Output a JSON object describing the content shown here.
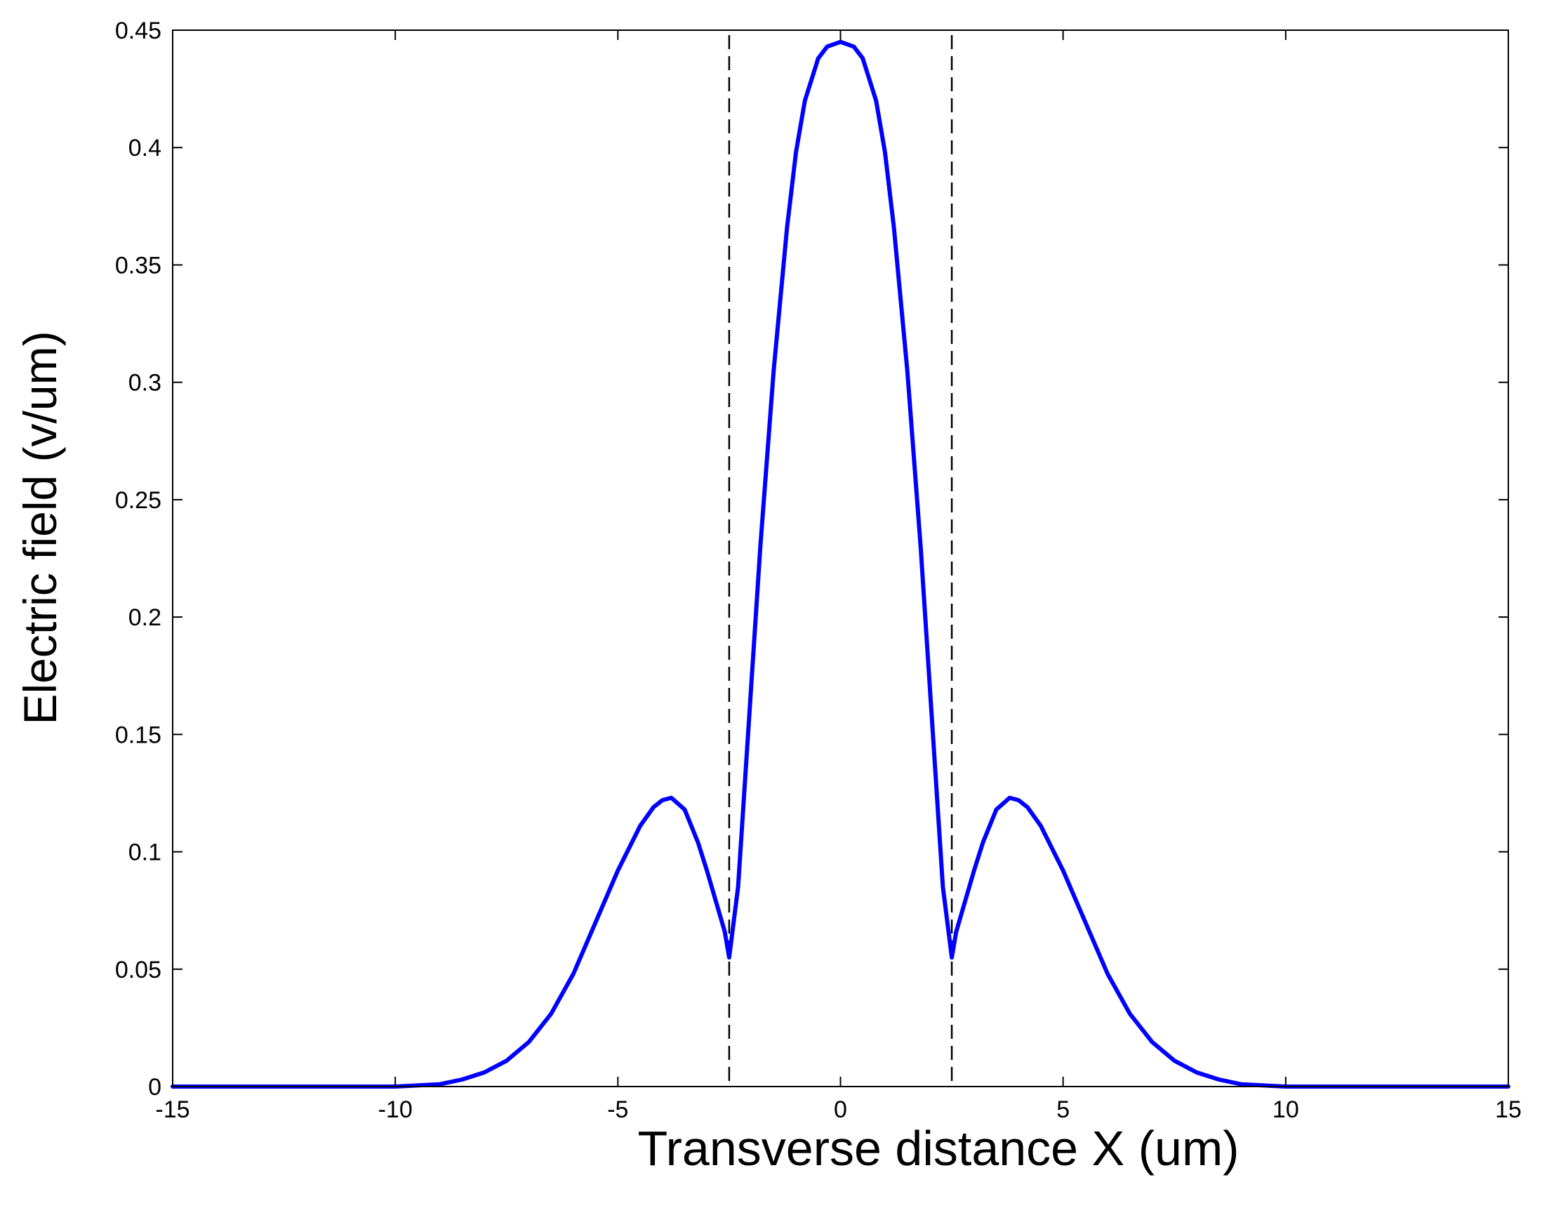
{
  "chart_data": {
    "type": "line",
    "title": "",
    "xlabel": "Transverse distance X (um)",
    "ylabel": "Electric field (v/um)",
    "xlim": [
      -15,
      15
    ],
    "ylim": [
      0,
      0.45
    ],
    "xticks": [
      -15,
      -10,
      -5,
      0,
      5,
      10,
      15
    ],
    "yticks": [
      0,
      0.05,
      0.1,
      0.15,
      0.2,
      0.25,
      0.3,
      0.35,
      0.4,
      0.45
    ],
    "xtick_labels": [
      "-15",
      "-10",
      "-5",
      "0",
      "5",
      "10",
      "15"
    ],
    "ytick_labels": [
      "0",
      "0.05",
      "0.1",
      "0.15",
      "0.2",
      "0.25",
      "0.3",
      "0.35",
      "0.4",
      "0.45"
    ],
    "grid": false,
    "legend": "none",
    "series": [
      {
        "color": "#0000ff",
        "x": [
          -15,
          -12,
          -10,
          -9,
          -8.5,
          -8,
          -7.5,
          -7,
          -6.5,
          -6,
          -5.5,
          -5,
          -4.5,
          -4.2,
          -4,
          -3.8,
          -3.5,
          -3.2,
          -3,
          -2.8,
          -2.6,
          -2.5,
          -2.3,
          -2,
          -1.8,
          -1.5,
          -1.2,
          -1,
          -0.8,
          -0.5,
          -0.3,
          0,
          0.3,
          0.5,
          0.8,
          1,
          1.2,
          1.5,
          1.8,
          2,
          2.3,
          2.5,
          2.6,
          2.8,
          3,
          3.2,
          3.5,
          3.8,
          4,
          4.2,
          4.5,
          5,
          5.5,
          6,
          6.5,
          7,
          7.5,
          8,
          8.5,
          9,
          10,
          12,
          15
        ],
        "y": [
          0,
          0,
          0,
          0.001,
          0.003,
          0.006,
          0.011,
          0.019,
          0.031,
          0.048,
          0.07,
          0.092,
          0.111,
          0.119,
          0.122,
          0.123,
          0.118,
          0.104,
          0.092,
          0.079,
          0.066,
          0.055,
          0.085,
          0.172,
          0.23,
          0.305,
          0.366,
          0.398,
          0.42,
          0.438,
          0.443,
          0.445,
          0.443,
          0.438,
          0.42,
          0.398,
          0.366,
          0.305,
          0.23,
          0.172,
          0.085,
          0.055,
          0.066,
          0.079,
          0.092,
          0.104,
          0.118,
          0.123,
          0.122,
          0.119,
          0.111,
          0.092,
          0.07,
          0.048,
          0.031,
          0.019,
          0.011,
          0.006,
          0.003,
          0.001,
          0,
          0,
          0
        ]
      }
    ],
    "reference_lines": [
      {
        "orientation": "vertical",
        "x": -2.5,
        "style": "dashed",
        "color": "#000000"
      },
      {
        "orientation": "vertical",
        "x": 2.5,
        "style": "dashed",
        "color": "#000000"
      }
    ]
  }
}
